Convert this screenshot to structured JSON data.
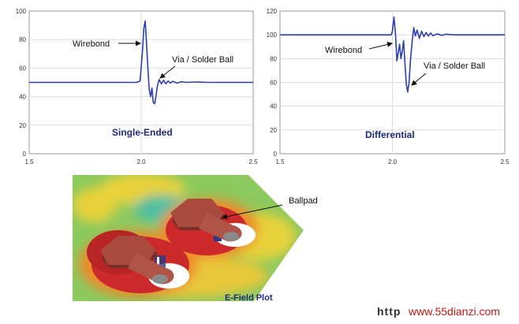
{
  "chart_data": [
    {
      "type": "line",
      "title": "Single-Ended",
      "xlim": [
        1.5,
        2.5
      ],
      "ylim": [
        0,
        100
      ],
      "x_ticks": [
        "1.5",
        "2.0",
        "2.5"
      ],
      "y_ticks": [
        "0",
        "20",
        "40",
        "60",
        "80",
        "100"
      ],
      "grid": true,
      "annotations": [
        "Wirebond",
        "Via / Solder Ball"
      ],
      "series": [
        {
          "color": "#2b3fb0",
          "points": [
            [
              1.5,
              50
            ],
            [
              1.98,
              50
            ],
            [
              1.995,
              51
            ],
            [
              2.005,
              70
            ],
            [
              2.012,
              88
            ],
            [
              2.018,
              93
            ],
            [
              2.023,
              80
            ],
            [
              2.03,
              60
            ],
            [
              2.036,
              45
            ],
            [
              2.042,
              40
            ],
            [
              2.048,
              46
            ],
            [
              2.054,
              36
            ],
            [
              2.06,
              35
            ],
            [
              2.066,
              40
            ],
            [
              2.072,
              47
            ],
            [
              2.08,
              52
            ],
            [
              2.09,
              49
            ],
            [
              2.1,
              51.5
            ],
            [
              2.11,
              49
            ],
            [
              2.12,
              51
            ],
            [
              2.13,
              49.5
            ],
            [
              2.14,
              50.8
            ],
            [
              2.16,
              49.5
            ],
            [
              2.18,
              50.5
            ],
            [
              2.2,
              50
            ],
            [
              2.25,
              50.3
            ],
            [
              2.3,
              50
            ],
            [
              2.5,
              50
            ]
          ]
        }
      ]
    },
    {
      "type": "line",
      "title": "Differential",
      "xlim": [
        1.5,
        2.5
      ],
      "ylim": [
        0,
        120
      ],
      "x_ticks": [
        "1.5",
        "2.0",
        "2.5"
      ],
      "y_ticks": [
        "0",
        "20",
        "40",
        "60",
        "80",
        "100",
        "120"
      ],
      "grid": true,
      "annotations": [
        "Wirebond",
        "Via / Solder Ball"
      ],
      "series": [
        {
          "color": "#2b3fb0",
          "points": [
            [
              1.5,
              100
            ],
            [
              1.995,
              100
            ],
            [
              2.0,
              103
            ],
            [
              2.007,
              115
            ],
            [
              2.014,
              100
            ],
            [
              2.02,
              78
            ],
            [
              2.026,
              85
            ],
            [
              2.032,
              92
            ],
            [
              2.038,
              80
            ],
            [
              2.044,
              86
            ],
            [
              2.05,
              95
            ],
            [
              2.056,
              75
            ],
            [
              2.062,
              58
            ],
            [
              2.068,
              52
            ],
            [
              2.074,
              60
            ],
            [
              2.08,
              78
            ],
            [
              2.088,
              95
            ],
            [
              2.095,
              106
            ],
            [
              2.102,
              99
            ],
            [
              2.11,
              104
            ],
            [
              2.12,
              97
            ],
            [
              2.13,
              103
            ],
            [
              2.14,
              98.5
            ],
            [
              2.15,
              102
            ],
            [
              2.16,
              99
            ],
            [
              2.17,
              101.5
            ],
            [
              2.18,
              99.3
            ],
            [
              2.2,
              100.8
            ],
            [
              2.22,
              99.6
            ],
            [
              2.24,
              100.5
            ],
            [
              2.27,
              100
            ],
            [
              2.5,
              100
            ]
          ]
        }
      ]
    }
  ],
  "efield": {
    "label": "Ballpad",
    "caption": "E-Field Plot",
    "colors": {
      "red": "#cc2a2a",
      "orange": "#ef8a2a",
      "yellow": "#e8d23a",
      "green": "#7ec65a",
      "cyan": "#4fbfa0",
      "pad": "#a94a3f"
    }
  },
  "watermark": {
    "text": "www.55dianzi.com",
    "prefix": "http"
  }
}
